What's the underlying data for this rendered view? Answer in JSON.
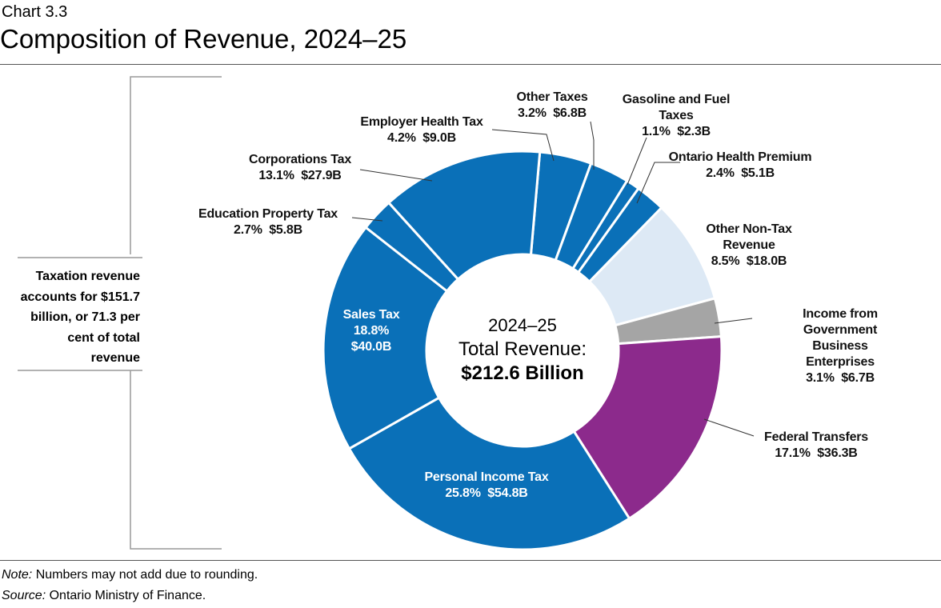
{
  "chart_label": "Chart 3.3",
  "chart_data": {
    "type": "donut",
    "title": "Composition of Revenue, 2024–25",
    "categories": [
      "Employer Health Tax",
      "Other Taxes",
      "Gasoline and Fuel\nTaxes",
      "Ontario Health Premium",
      "Other Non-Tax\nRevenue",
      "Income from Government\nBusiness Enterprises",
      "Federal Transfers",
      "Personal Income Tax",
      "Sales Tax",
      "Education Property Tax",
      "Corporations Tax"
    ],
    "values": [
      4.2,
      3.2,
      1.1,
      2.4,
      8.5,
      3.1,
      17.1,
      25.8,
      18.8,
      2.7,
      13.1
    ],
    "value_labels": [
      "4.2%",
      "3.2%",
      "1.1%",
      "2.4%",
      "8.5%",
      "3.1%",
      "17.1%",
      "25.8%",
      "18.8%",
      "2.7%",
      "13.1%"
    ],
    "amounts": [
      9.0,
      6.8,
      2.3,
      5.1,
      18.0,
      6.7,
      36.3,
      54.8,
      40.0,
      5.8,
      27.9
    ],
    "amount_labels": [
      "$9.0B",
      "$6.8B",
      "$2.3B",
      "$5.1B",
      "$18.0B",
      "$6.7B",
      "$36.3B",
      "$54.8B",
      "$40.0B",
      "$5.8B",
      "$27.9B"
    ],
    "colors": [
      "#0a70b8",
      "#0a70b8",
      "#0a70b8",
      "#0a70b8",
      "#dde9f5",
      "#a5a5a5",
      "#8c2a8c",
      "#0a70b8",
      "#0a70b8",
      "#0a70b8",
      "#0a70b8"
    ],
    "center_label": [
      "2024–25",
      "Total Revenue:",
      "$212.6 Billion"
    ],
    "annotation": "Taxation revenue accounts for $151.7 billion, or 71.3 per cent of total revenue"
  },
  "note_label": "Note:",
  "note": "Numbers may not add due to rounding.",
  "source_label": "Source:",
  "source": "Ontario Ministry of Finance."
}
